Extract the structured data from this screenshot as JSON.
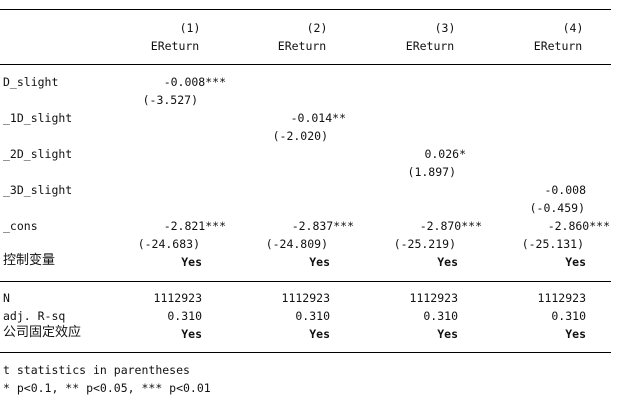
{
  "table": {
    "columns": [
      {
        "num": "(1)",
        "dep": "EReturn"
      },
      {
        "num": "(2)",
        "dep": "EReturn"
      },
      {
        "num": "(3)",
        "dep": "EReturn"
      },
      {
        "num": "(4)",
        "dep": "EReturn"
      }
    ],
    "rows": {
      "d_slight": {
        "label": "D_slight",
        "col1_coef": "-0.008***",
        "col1_t": "(-3.527)"
      },
      "d1_slight": {
        "label": "_1D_slight",
        "col2_coef": "-0.014**",
        "col2_t": "(-2.020)"
      },
      "d2_slight": {
        "label": "_2D_slight",
        "col3_coef": "0.026*",
        "col3_t": "(1.897)"
      },
      "d3_slight": {
        "label": "_3D_slight",
        "col4_coef": "-0.008",
        "col4_t": "(-0.459)"
      },
      "cons": {
        "label": "_cons",
        "coefs": [
          "-2.821***",
          "-2.837***",
          "-2.870***",
          "-2.860***"
        ],
        "tstats": [
          "(-24.683)",
          "(-24.809)",
          "(-25.219)",
          "(-25.131)"
        ]
      },
      "controls": {
        "label": "控制变量",
        "values": [
          "Yes",
          "Yes",
          "Yes",
          "Yes"
        ]
      },
      "n": {
        "label": "N",
        "values": [
          "1112923",
          "1112923",
          "1112923",
          "1112923"
        ]
      },
      "adj_r2": {
        "label": "adj. R-sq",
        "values": [
          "0.310",
          "0.310",
          "0.310",
          "0.310"
        ]
      },
      "firm_fe": {
        "label": "公司固定效应",
        "values": [
          "Yes",
          "Yes",
          "Yes",
          "Yes"
        ]
      }
    },
    "notes": [
      "t statistics in parentheses",
      "* p<0.1, ** p<0.05, *** p<0.01"
    ]
  }
}
